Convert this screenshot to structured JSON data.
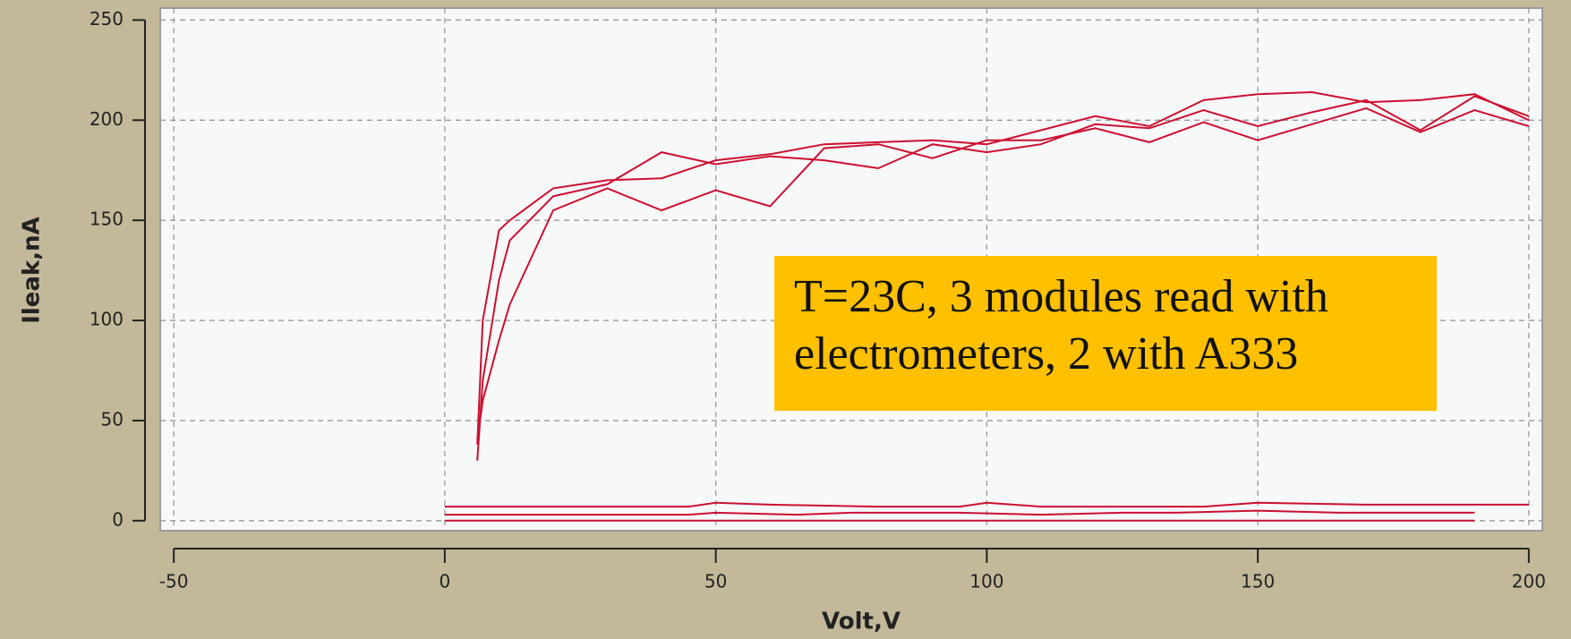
{
  "chart_data": {
    "type": "line",
    "x_label": "Volt,V",
    "y_label": "Ileak,nA",
    "annotation": "T=23C, 3 modules read with electrometers, 2 with A333",
    "xlim": [
      -52.5,
      202.5
    ],
    "xticks": [
      -50,
      0,
      50,
      100,
      150,
      200
    ],
    "ylim": [
      -5,
      256
    ],
    "yticks": [
      0,
      50,
      100,
      150,
      200,
      250
    ],
    "grid": true,
    "series": [
      {
        "color": "#cc1030",
        "x": [
          6,
          7,
          10,
          12,
          20,
          30,
          40,
          50,
          60,
          70,
          80,
          90,
          100,
          110,
          120,
          130,
          140,
          150,
          160,
          170,
          180,
          190,
          200
        ],
        "values": [
          38,
          100,
          145,
          150,
          166,
          170,
          171,
          180,
          183,
          188,
          189,
          190,
          188,
          195,
          202,
          197,
          210,
          213,
          214,
          209,
          210,
          213,
          200
        ]
      },
      {
        "color": "#cc1030",
        "x": [
          6,
          7,
          10,
          12,
          20,
          30,
          40,
          50,
          60,
          70,
          80,
          90,
          100,
          110,
          120,
          130,
          140,
          150,
          160,
          170,
          180,
          190,
          200
        ],
        "values": [
          30,
          70,
          120,
          140,
          162,
          168,
          184,
          178,
          182,
          180,
          176,
          188,
          184,
          188,
          198,
          196,
          205,
          197,
          204,
          210,
          195,
          212,
          202
        ]
      },
      {
        "color": "#cc1030",
        "x": [
          6,
          7,
          10,
          12,
          20,
          30,
          40,
          50,
          60,
          70,
          80,
          90,
          100,
          110,
          120,
          130,
          140,
          150,
          160,
          170,
          180,
          190,
          200
        ],
        "values": [
          40,
          60,
          90,
          108,
          155,
          166,
          155,
          165,
          157,
          186,
          188,
          181,
          190,
          190,
          196,
          189,
          199,
          190,
          198,
          206,
          194,
          205,
          197
        ]
      },
      {
        "color": "#cc1030",
        "x": [
          0,
          45,
          50,
          60,
          80,
          95,
          100,
          110,
          140,
          150,
          170,
          200
        ],
        "values": [
          7,
          7,
          9,
          8,
          7,
          7,
          9,
          7,
          7,
          9,
          8,
          8
        ]
      },
      {
        "color": "#cc1030",
        "x": [
          0,
          45,
          50,
          65,
          75,
          95,
          110,
          125,
          135,
          150,
          165,
          190
        ],
        "values": [
          3,
          3,
          4,
          3,
          4,
          4,
          3,
          4,
          4,
          5,
          4,
          4
        ]
      },
      {
        "color": "#cc1030",
        "x": [
          0,
          190
        ],
        "values": [
          0,
          0
        ]
      }
    ]
  }
}
